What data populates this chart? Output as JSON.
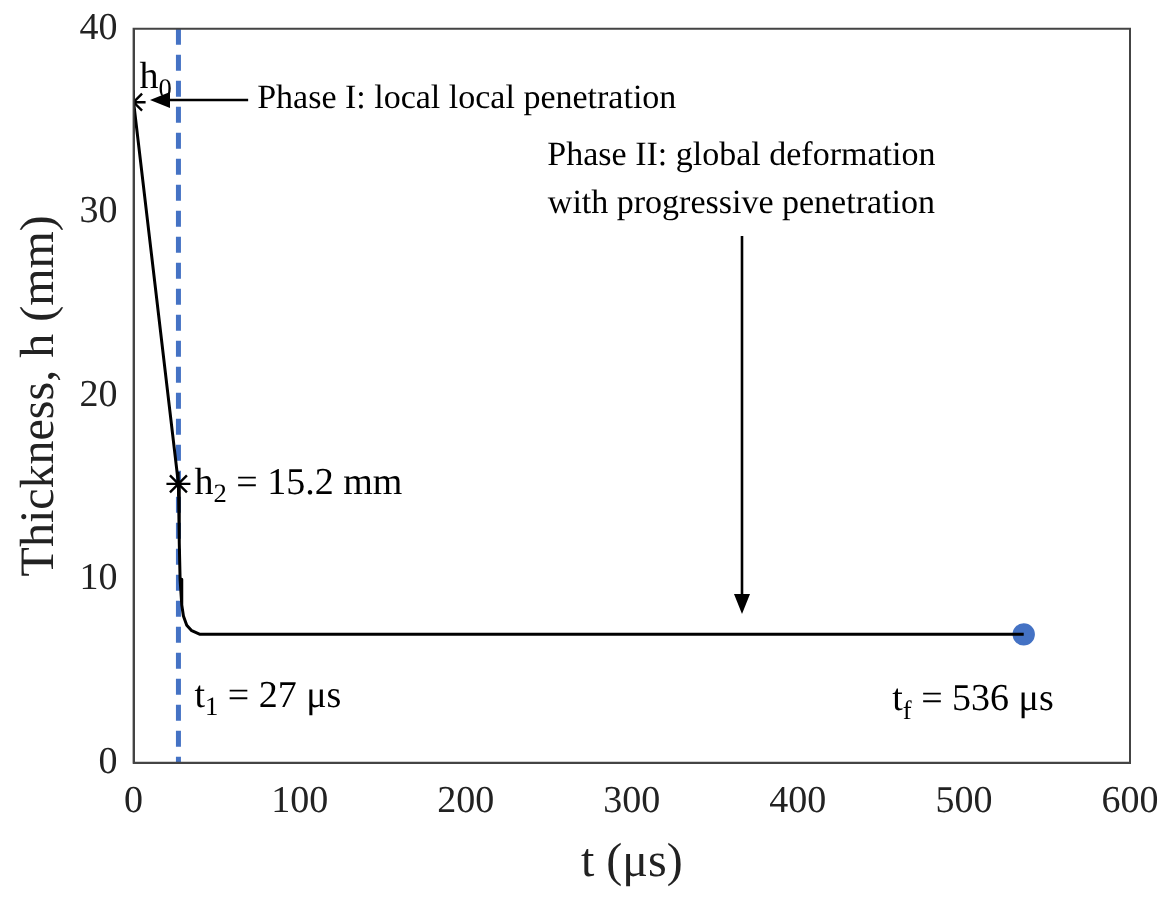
{
  "chart_data": {
    "type": "line",
    "xlabel": "t (μs)",
    "ylabel": "Thickness, h (mm)",
    "xlim": [
      0,
      600
    ],
    "xticks": [
      0,
      100,
      200,
      300,
      400,
      500,
      600
    ],
    "ylim": [
      0,
      40
    ],
    "yticks": [
      0,
      10,
      20,
      30,
      40
    ],
    "grid": false,
    "legend": false,
    "series": [
      {
        "type": "line",
        "color": "#000000",
        "marker": "none",
        "x": [
          0,
          27,
          27.5,
          28,
          29,
          30,
          32,
          35,
          40,
          50,
          536
        ],
        "values": [
          36,
          15.2,
          12,
          10,
          8.6,
          8,
          7.5,
          7.2,
          7,
          7,
          7
        ]
      },
      {
        "type": "scatter",
        "color": "#000000",
        "marker": "cross",
        "x": [
          0,
          27
        ],
        "values": [
          36,
          15.2
        ]
      },
      {
        "type": "scatter",
        "color": "#4472c4",
        "marker": "circle",
        "x": [
          536
        ],
        "values": [
          7
        ]
      }
    ],
    "ref_lines": [
      {
        "axis": "x",
        "value": 27,
        "label": "t$_{1}$ = 27 μs",
        "color": "#4472c4",
        "line_style": "dashed"
      }
    ],
    "annotations": [
      {
        "text": "h$_{0}$",
        "x": 0,
        "y": 36
      },
      {
        "text": "h$_{2}$ = 15.2 mm",
        "x": 27,
        "y": 15.2
      },
      {
        "text": "t$_{f}$ = 536 μs",
        "x": 536,
        "y": 7
      },
      "Phase I: local local penetration",
      "Phase II: global deformation\nwith progressive penetration"
    ]
  }
}
